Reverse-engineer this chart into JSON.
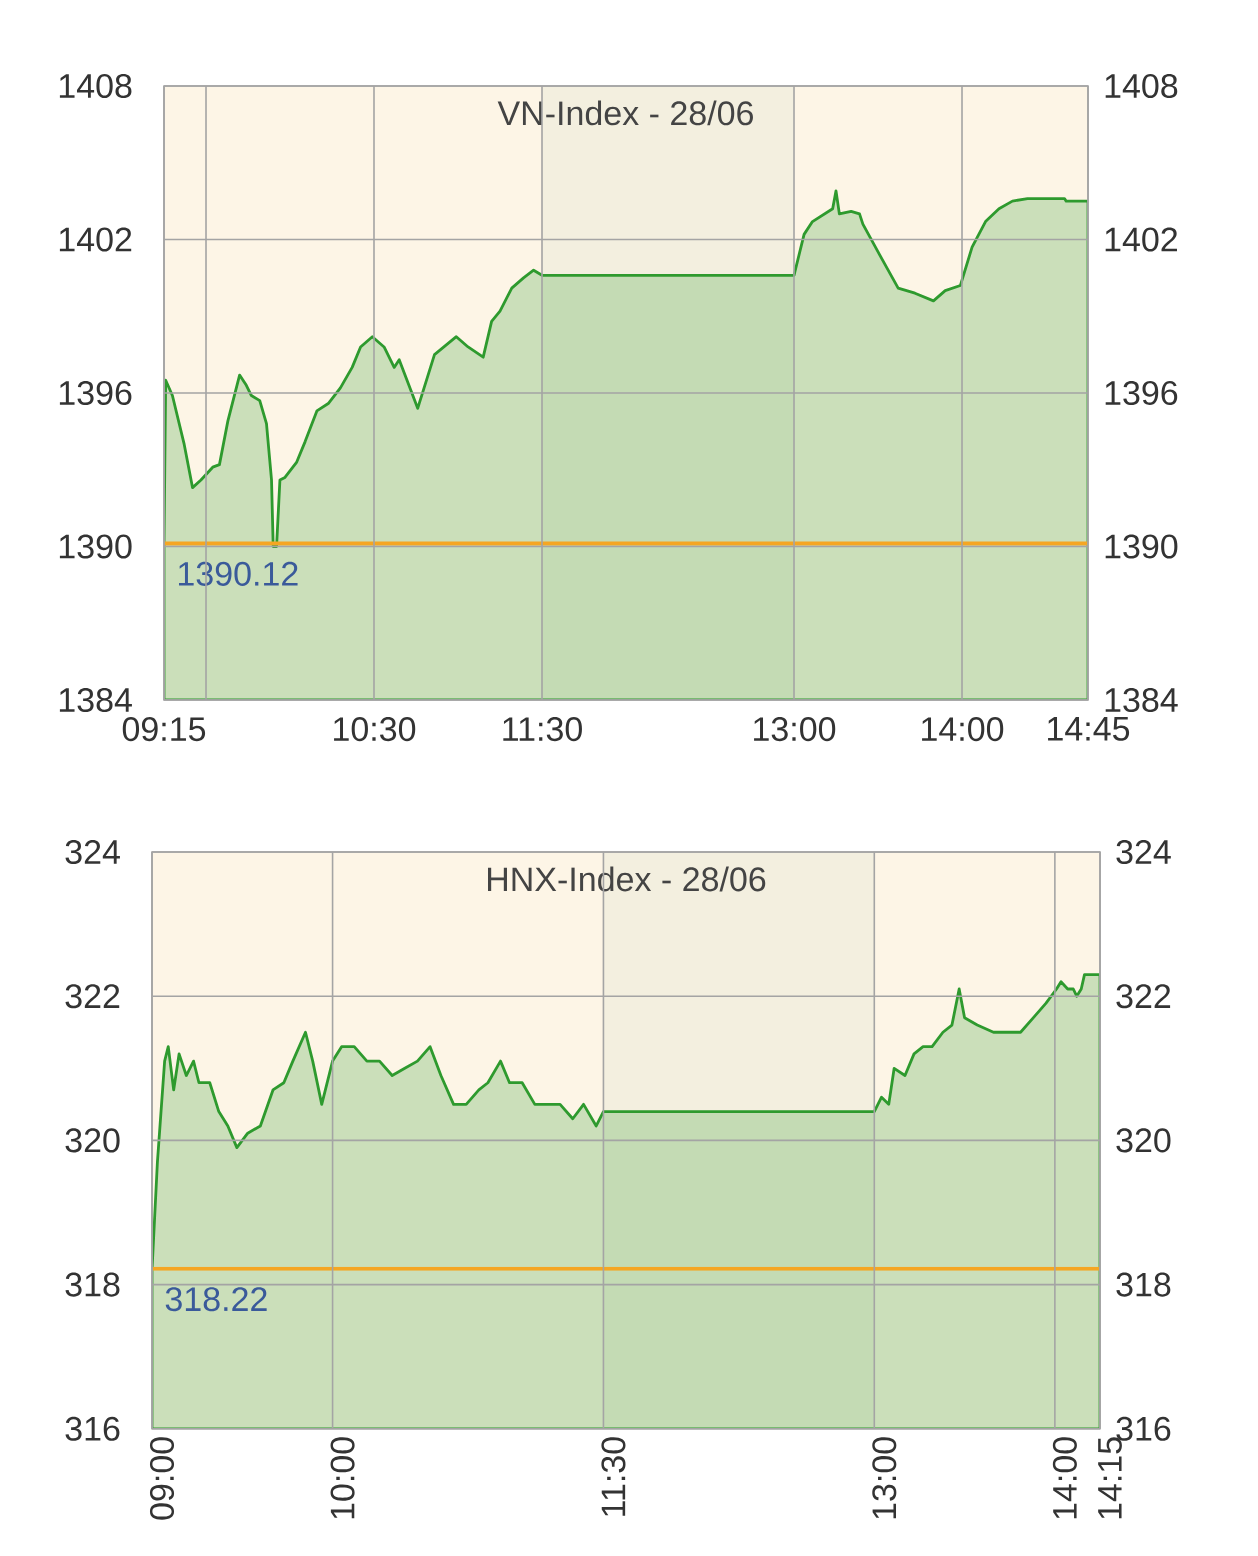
{
  "chart_data": [
    {
      "type": "area",
      "title": "VN-Index - 28/06",
      "color": "#2e9a2e",
      "x": [
        9.25,
        9.26,
        9.3,
        9.37,
        9.42,
        9.47,
        9.54,
        9.58,
        9.63,
        9.7,
        9.74,
        9.77,
        9.82,
        9.86,
        9.89,
        9.9,
        9.92,
        9.94,
        9.97,
        10.04,
        10.09,
        10.16,
        10.23,
        10.3,
        10.37,
        10.42,
        10.49,
        10.56,
        10.62,
        10.65,
        10.76,
        10.86,
        10.99,
        11.06,
        11.15,
        11.2,
        11.25,
        11.32,
        11.39,
        11.45,
        11.5,
        13.0,
        13.06,
        13.11,
        13.23,
        13.25,
        13.27,
        13.34,
        13.39,
        13.41,
        13.51,
        13.62,
        13.72,
        13.83,
        13.9,
        13.99,
        14.06,
        14.14,
        14.22,
        14.3,
        14.39,
        14.61,
        14.62,
        14.75
      ],
      "values": [
        1390.1,
        1396.5,
        1395.9,
        1394.0,
        1392.3,
        1392.6,
        1393.1,
        1393.2,
        1394.9,
        1396.7,
        1396.3,
        1395.9,
        1395.7,
        1394.8,
        1392.6,
        1390.0,
        1390.0,
        1392.6,
        1392.7,
        1393.3,
        1394.1,
        1395.3,
        1395.6,
        1396.2,
        1397.0,
        1397.8,
        1398.2,
        1397.8,
        1397.0,
        1397.3,
        1395.4,
        1397.5,
        1398.2,
        1397.8,
        1397.4,
        1398.8,
        1399.2,
        1400.1,
        1400.5,
        1400.8,
        1400.6,
        1400.6,
        1402.2,
        1402.7,
        1403.2,
        1403.9,
        1403.0,
        1403.1,
        1403.0,
        1402.6,
        1401.4,
        1400.1,
        1399.9,
        1399.6,
        1400.0,
        1400.2,
        1401.7,
        1402.7,
        1403.2,
        1403.5,
        1403.6,
        1403.6,
        1403.5,
        1403.5
      ],
      "xlim": [
        9.25,
        14.75
      ],
      "xticks": [
        {
          "value": 9.25,
          "label": "09:15"
        },
        {
          "value": 9.5,
          "label": null
        },
        {
          "value": 10.5,
          "label": "10:30"
        },
        {
          "value": 11.5,
          "label": "11:30"
        },
        {
          "value": 13,
          "label": "13:00"
        },
        {
          "value": 14,
          "label": "14:00"
        },
        {
          "value": 14.75,
          "label": "14:45"
        }
      ],
      "ylim": [
        1384,
        1408
      ],
      "yticks": [
        1384,
        1390,
        1396,
        1402,
        1408
      ],
      "y2lim": [
        1384,
        1408
      ],
      "y2ticks": [
        1384,
        1390,
        1396,
        1402,
        1408
      ],
      "grid": true,
      "ref_lines": [
        {
          "axis": "y",
          "value": 1390.12,
          "label": "1390.12",
          "color": "#f5a623"
        }
      ],
      "bands": [
        {
          "axis": "x",
          "from": 11.5,
          "to": 13,
          "color": "#f3efdf"
        }
      ]
    },
    {
      "type": "area",
      "title": "HNX-Index - 28/06",
      "color": "#2e9a2e",
      "x": [
        9.0,
        9.03,
        9.07,
        9.09,
        9.12,
        9.15,
        9.19,
        9.23,
        9.26,
        9.32,
        9.37,
        9.42,
        9.47,
        9.53,
        9.6,
        9.67,
        9.73,
        9.78,
        9.85,
        9.89,
        9.94,
        10.0,
        10.05,
        10.12,
        10.19,
        10.26,
        10.33,
        10.4,
        10.47,
        10.54,
        10.6,
        10.67,
        10.74,
        10.81,
        10.86,
        10.93,
        10.98,
        11.05,
        11.12,
        11.19,
        11.26,
        11.33,
        11.39,
        11.46,
        11.5,
        13.0,
        13.04,
        13.08,
        13.11,
        13.17,
        13.22,
        13.27,
        13.32,
        13.38,
        13.43,
        13.47,
        13.5,
        13.57,
        13.66,
        13.74,
        13.81,
        13.88,
        13.95,
        14.009,
        14.034,
        14.071,
        14.102,
        14.121,
        14.146,
        14.164,
        14.25
      ],
      "values": [
        318.2,
        319.7,
        321.1,
        321.3,
        320.7,
        321.2,
        320.9,
        321.1,
        320.8,
        320.8,
        320.4,
        320.2,
        319.9,
        320.1,
        320.2,
        320.7,
        320.8,
        321.1,
        321.5,
        321.1,
        320.5,
        321.1,
        321.3,
        321.3,
        321.1,
        321.1,
        320.9,
        321.0,
        321.1,
        321.3,
        320.9,
        320.5,
        320.5,
        320.7,
        320.8,
        321.1,
        320.8,
        320.8,
        320.5,
        320.5,
        320.5,
        320.3,
        320.5,
        320.2,
        320.4,
        320.4,
        320.6,
        320.5,
        321.0,
        320.9,
        321.2,
        321.3,
        321.3,
        321.5,
        321.6,
        322.1,
        321.7,
        321.6,
        321.5,
        321.5,
        321.5,
        321.7,
        321.9,
        322.1,
        322.2,
        322.1,
        322.1,
        322.0,
        322.1,
        322.3,
        322.3
      ],
      "xlim": [
        9.0,
        14.25
      ],
      "xticks": [
        {
          "value": 9,
          "label": "09:00"
        },
        {
          "value": 10,
          "label": "10:00"
        },
        {
          "value": 11.5,
          "label": "11:30"
        },
        {
          "value": 13,
          "label": "13:00"
        },
        {
          "value": 14,
          "label": "14:00"
        },
        {
          "value": 14.25,
          "label": "14:15"
        }
      ],
      "ylim": [
        316,
        324
      ],
      "yticks": [
        316,
        318,
        320,
        322,
        324
      ],
      "y2lim": [
        316,
        324
      ],
      "y2ticks": [
        316,
        318,
        320,
        322,
        324
      ],
      "grid": true,
      "ref_lines": [
        {
          "axis": "y",
          "value": 318.22,
          "label": "318.22",
          "color": "#f5a623"
        }
      ],
      "bands": [
        {
          "axis": "x",
          "from": 11.5,
          "to": 13,
          "color": "#f3efdf"
        }
      ]
    }
  ]
}
